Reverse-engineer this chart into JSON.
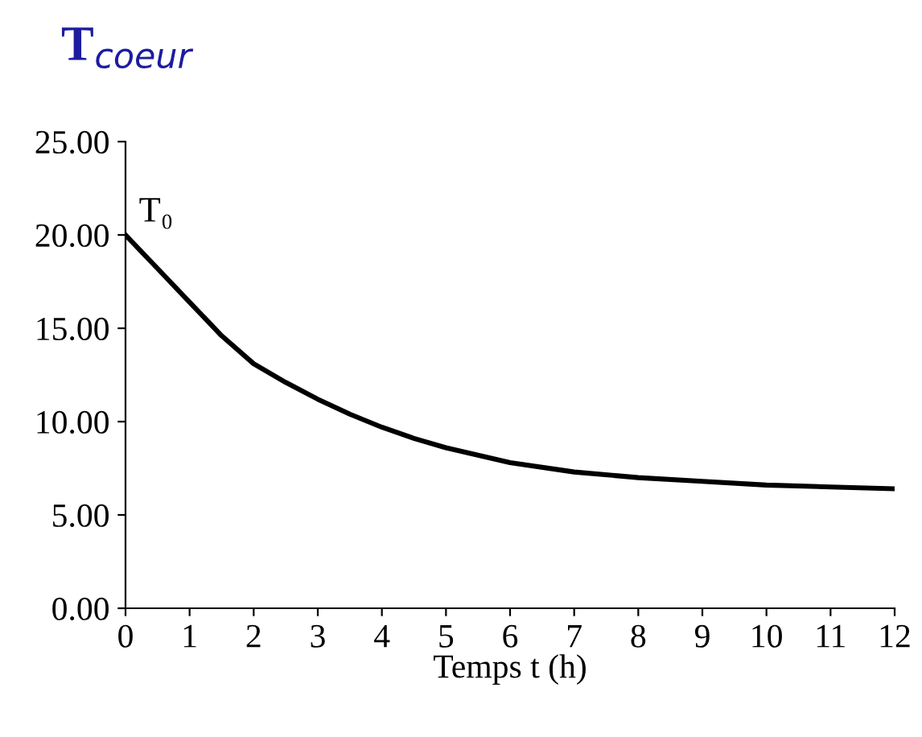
{
  "chart_data": {
    "type": "line",
    "title": "T$_{coeur}$",
    "xlabel": "Temps t (h)",
    "x": [
      0,
      0.5,
      1,
      1.5,
      2,
      2.5,
      3,
      3.5,
      4,
      4.5,
      5,
      5.5,
      6,
      7,
      8,
      9,
      10,
      11,
      12
    ],
    "series": [
      {
        "color": "#000000",
        "values": [
          20.0,
          18.2,
          16.4,
          14.6,
          13.1,
          12.1,
          11.2,
          10.4,
          9.7,
          9.1,
          8.6,
          8.2,
          7.8,
          7.3,
          7.0,
          6.8,
          6.6,
          6.5,
          6.4
        ]
      }
    ],
    "annotations": [
      {
        "text": "T₀",
        "x": 0,
        "y": 20
      }
    ],
    "xlim": [
      0,
      12
    ],
    "xticks": [
      0,
      1,
      2,
      3,
      4,
      5,
      6,
      7,
      8,
      9,
      10,
      11,
      12
    ],
    "ylim": [
      0,
      25
    ],
    "yticks": [
      {
        "value": 0,
        "label": "0.00"
      },
      {
        "value": 5,
        "label": "5.00"
      },
      {
        "value": 10,
        "label": "10.00"
      },
      {
        "value": 15,
        "label": "15.00"
      },
      {
        "value": 20,
        "label": "20.00"
      },
      {
        "value": 25,
        "label": "25.00"
      }
    ],
    "grid": false,
    "legend": false,
    "marker": "none",
    "line_style": "solid"
  }
}
